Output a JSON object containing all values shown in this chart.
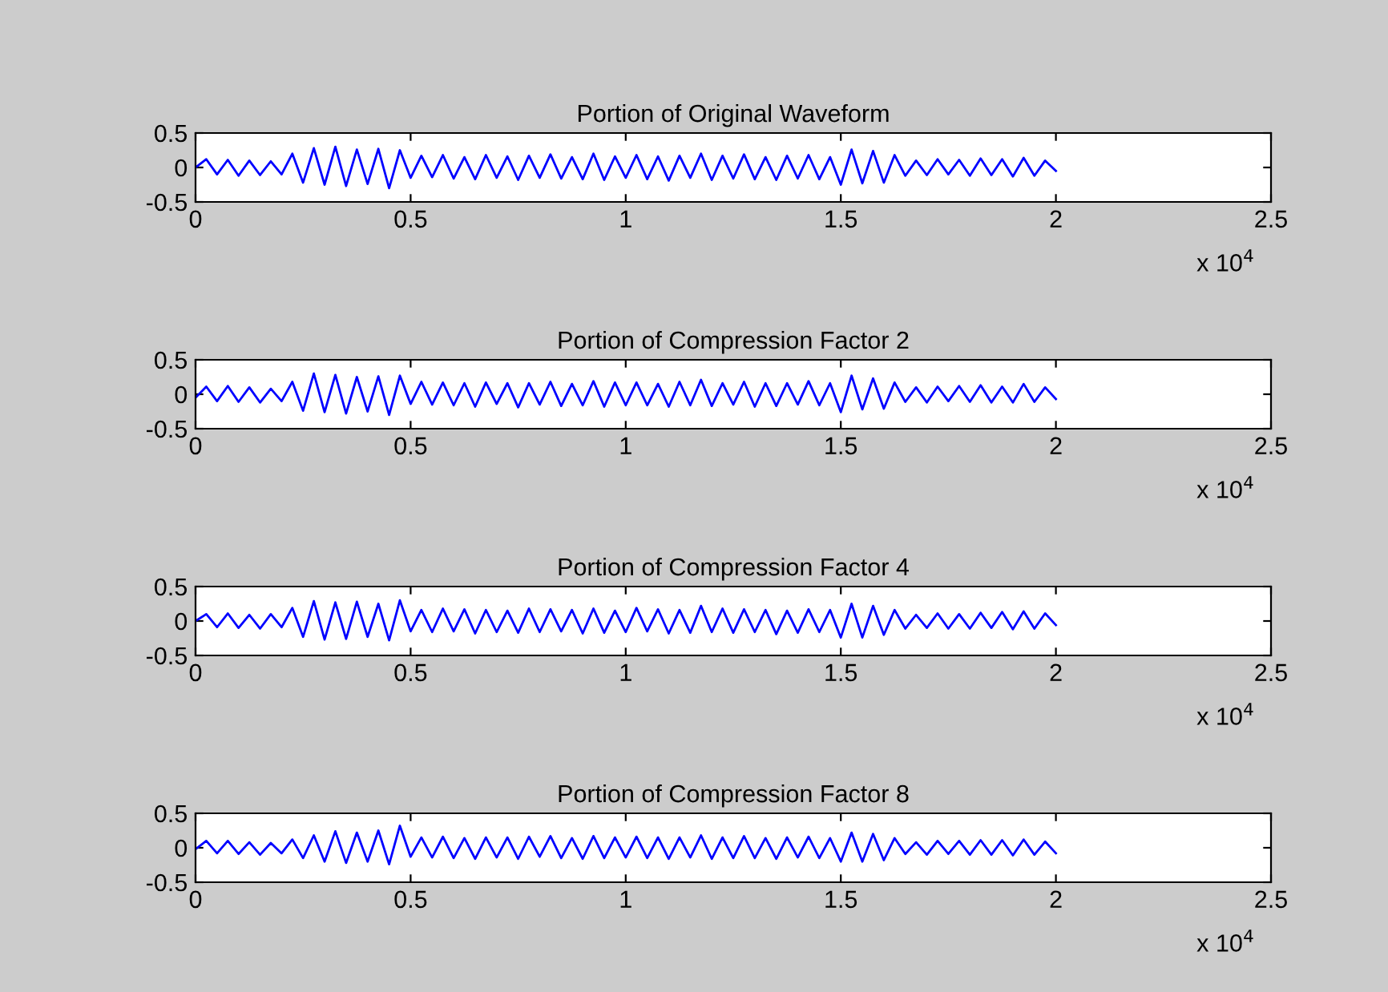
{
  "chart_data": [
    {
      "type": "line",
      "title": "Portion of Original Waveform",
      "annotations": [
        "x 10$^{4}$"
      ],
      "xlim": [
        0,
        2.5
      ],
      "xticks": [
        0,
        0.5,
        1,
        1.5,
        2,
        2.5
      ],
      "ylim": [
        -0.5,
        0.5
      ],
      "yticks": [
        -0.5,
        0,
        0.5
      ],
      "series": [
        {
          "color": "#0000ff",
          "x": [
            0,
            0.025,
            0.05,
            0.075,
            0.1,
            0.125,
            0.15,
            0.175,
            0.2,
            0.225,
            0.25,
            0.275,
            0.3,
            0.325,
            0.35,
            0.375,
            0.4,
            0.425,
            0.45,
            0.475,
            0.5,
            0.525,
            0.55,
            0.575,
            0.6,
            0.625,
            0.65,
            0.675,
            0.7,
            0.725,
            0.75,
            0.775,
            0.8,
            0.825,
            0.85,
            0.875,
            0.9,
            0.925,
            0.95,
            0.975,
            1.0,
            1.025,
            1.05,
            1.075,
            1.1,
            1.125,
            1.15,
            1.175,
            1.2,
            1.225,
            1.25,
            1.275,
            1.3,
            1.325,
            1.35,
            1.375,
            1.4,
            1.425,
            1.45,
            1.475,
            1.5,
            1.525,
            1.55,
            1.575,
            1.6,
            1.625,
            1.65,
            1.675,
            1.7,
            1.725,
            1.75,
            1.775,
            1.8,
            1.825,
            1.85,
            1.875,
            1.9,
            1.925,
            1.95,
            1.975,
            2.0
          ],
          "values": [
            0.0,
            0.12,
            -0.1,
            0.11,
            -0.12,
            0.1,
            -0.11,
            0.09,
            -0.1,
            0.2,
            -0.22,
            0.28,
            -0.25,
            0.3,
            -0.27,
            0.26,
            -0.24,
            0.27,
            -0.3,
            0.25,
            -0.15,
            0.17,
            -0.14,
            0.18,
            -0.16,
            0.15,
            -0.17,
            0.18,
            -0.15,
            0.16,
            -0.18,
            0.17,
            -0.15,
            0.19,
            -0.16,
            0.15,
            -0.17,
            0.2,
            -0.18,
            0.16,
            -0.15,
            0.18,
            -0.17,
            0.16,
            -0.19,
            0.17,
            -0.15,
            0.2,
            -0.18,
            0.17,
            -0.16,
            0.19,
            -0.17,
            0.15,
            -0.18,
            0.17,
            -0.16,
            0.18,
            -0.17,
            0.15,
            -0.25,
            0.26,
            -0.23,
            0.24,
            -0.22,
            0.18,
            -0.12,
            0.1,
            -0.11,
            0.12,
            -0.1,
            0.11,
            -0.12,
            0.13,
            -0.11,
            0.12,
            -0.13,
            0.14,
            -0.12,
            0.1,
            -0.05
          ]
        }
      ]
    },
    {
      "type": "line",
      "title": "Portion of Compression Factor 2",
      "annotations": [
        "x 10$^{4}$"
      ],
      "xlim": [
        0,
        2.5
      ],
      "xticks": [
        0,
        0.5,
        1,
        1.5,
        2,
        2.5
      ],
      "ylim": [
        -0.5,
        0.5
      ],
      "yticks": [
        -0.5,
        0,
        0.5
      ],
      "series": [
        {
          "color": "#0000ff",
          "x": [
            0,
            0.025,
            0.05,
            0.075,
            0.1,
            0.125,
            0.15,
            0.175,
            0.2,
            0.225,
            0.25,
            0.275,
            0.3,
            0.325,
            0.35,
            0.375,
            0.4,
            0.425,
            0.45,
            0.475,
            0.5,
            0.525,
            0.55,
            0.575,
            0.6,
            0.625,
            0.65,
            0.675,
            0.7,
            0.725,
            0.75,
            0.775,
            0.8,
            0.825,
            0.85,
            0.875,
            0.9,
            0.925,
            0.95,
            0.975,
            1.0,
            1.025,
            1.05,
            1.075,
            1.1,
            1.125,
            1.15,
            1.175,
            1.2,
            1.225,
            1.25,
            1.275,
            1.3,
            1.325,
            1.35,
            1.375,
            1.4,
            1.425,
            1.45,
            1.475,
            1.5,
            1.525,
            1.55,
            1.575,
            1.6,
            1.625,
            1.65,
            1.675,
            1.7,
            1.725,
            1.75,
            1.775,
            1.8,
            1.825,
            1.85,
            1.875,
            1.9,
            1.925,
            1.95,
            1.975,
            2.0
          ],
          "values": [
            -0.05,
            0.11,
            -0.1,
            0.12,
            -0.11,
            0.1,
            -0.12,
            0.08,
            -0.1,
            0.18,
            -0.24,
            0.3,
            -0.26,
            0.28,
            -0.28,
            0.25,
            -0.25,
            0.26,
            -0.3,
            0.27,
            -0.14,
            0.18,
            -0.15,
            0.17,
            -0.16,
            0.16,
            -0.18,
            0.17,
            -0.14,
            0.16,
            -0.19,
            0.16,
            -0.15,
            0.18,
            -0.17,
            0.15,
            -0.16,
            0.19,
            -0.18,
            0.17,
            -0.16,
            0.17,
            -0.16,
            0.15,
            -0.18,
            0.18,
            -0.16,
            0.21,
            -0.17,
            0.16,
            -0.15,
            0.18,
            -0.18,
            0.16,
            -0.17,
            0.16,
            -0.15,
            0.19,
            -0.16,
            0.16,
            -0.26,
            0.27,
            -0.22,
            0.23,
            -0.21,
            0.17,
            -0.11,
            0.1,
            -0.12,
            0.11,
            -0.1,
            0.12,
            -0.11,
            0.13,
            -0.12,
            0.11,
            -0.12,
            0.15,
            -0.11,
            0.1,
            -0.07
          ]
        }
      ]
    },
    {
      "type": "line",
      "title": "Portion of Compression Factor 4",
      "annotations": [
        "x 10$^{4}$"
      ],
      "xlim": [
        0,
        2.5
      ],
      "xticks": [
        0,
        0.5,
        1,
        1.5,
        2,
        2.5
      ],
      "ylim": [
        -0.5,
        0.5
      ],
      "yticks": [
        -0.5,
        0,
        0.5
      ],
      "series": [
        {
          "color": "#0000ff",
          "x": [
            0,
            0.025,
            0.05,
            0.075,
            0.1,
            0.125,
            0.15,
            0.175,
            0.2,
            0.225,
            0.25,
            0.275,
            0.3,
            0.325,
            0.35,
            0.375,
            0.4,
            0.425,
            0.45,
            0.475,
            0.5,
            0.525,
            0.55,
            0.575,
            0.6,
            0.625,
            0.65,
            0.675,
            0.7,
            0.725,
            0.75,
            0.775,
            0.8,
            0.825,
            0.85,
            0.875,
            0.9,
            0.925,
            0.95,
            0.975,
            1.0,
            1.025,
            1.05,
            1.075,
            1.1,
            1.125,
            1.15,
            1.175,
            1.2,
            1.225,
            1.25,
            1.275,
            1.3,
            1.325,
            1.35,
            1.375,
            1.4,
            1.425,
            1.45,
            1.475,
            1.5,
            1.525,
            1.55,
            1.575,
            1.6,
            1.625,
            1.65,
            1.675,
            1.7,
            1.725,
            1.75,
            1.775,
            1.8,
            1.825,
            1.85,
            1.875,
            1.9,
            1.925,
            1.95,
            1.975,
            2.0
          ],
          "values": [
            0.0,
            0.1,
            -0.09,
            0.11,
            -0.1,
            0.09,
            -0.11,
            0.1,
            -0.09,
            0.19,
            -0.23,
            0.29,
            -0.27,
            0.27,
            -0.26,
            0.28,
            -0.23,
            0.25,
            -0.28,
            0.3,
            -0.15,
            0.16,
            -0.16,
            0.18,
            -0.15,
            0.17,
            -0.18,
            0.16,
            -0.16,
            0.15,
            -0.17,
            0.18,
            -0.16,
            0.17,
            -0.15,
            0.16,
            -0.18,
            0.18,
            -0.17,
            0.15,
            -0.16,
            0.19,
            -0.15,
            0.17,
            -0.18,
            0.16,
            -0.17,
            0.22,
            -0.16,
            0.18,
            -0.17,
            0.17,
            -0.16,
            0.16,
            -0.19,
            0.15,
            -0.17,
            0.17,
            -0.16,
            0.16,
            -0.24,
            0.25,
            -0.24,
            0.22,
            -0.2,
            0.16,
            -0.11,
            0.09,
            -0.1,
            0.11,
            -0.11,
            0.1,
            -0.11,
            0.12,
            -0.1,
            0.13,
            -0.12,
            0.14,
            -0.11,
            0.11,
            -0.06
          ]
        }
      ]
    },
    {
      "type": "line",
      "title": "Portion of Compression Factor 8",
      "annotations": [
        "x 10$^{4}$"
      ],
      "xlim": [
        0,
        2.5
      ],
      "xticks": [
        0,
        0.5,
        1,
        1.5,
        2,
        2.5
      ],
      "ylim": [
        -0.5,
        0.5
      ],
      "yticks": [
        -0.5,
        0,
        0.5
      ],
      "series": [
        {
          "color": "#0000ff",
          "x": [
            0,
            0.025,
            0.05,
            0.075,
            0.1,
            0.125,
            0.15,
            0.175,
            0.2,
            0.225,
            0.25,
            0.275,
            0.3,
            0.325,
            0.35,
            0.375,
            0.4,
            0.425,
            0.45,
            0.475,
            0.5,
            0.525,
            0.55,
            0.575,
            0.6,
            0.625,
            0.65,
            0.675,
            0.7,
            0.725,
            0.75,
            0.775,
            0.8,
            0.825,
            0.85,
            0.875,
            0.9,
            0.925,
            0.95,
            0.975,
            1.0,
            1.025,
            1.05,
            1.075,
            1.1,
            1.125,
            1.15,
            1.175,
            1.2,
            1.225,
            1.25,
            1.275,
            1.3,
            1.325,
            1.35,
            1.375,
            1.4,
            1.425,
            1.45,
            1.475,
            1.5,
            1.525,
            1.55,
            1.575,
            1.6,
            1.625,
            1.65,
            1.675,
            1.7,
            1.725,
            1.75,
            1.775,
            1.8,
            1.825,
            1.85,
            1.875,
            1.9,
            1.925,
            1.95,
            1.975,
            2.0
          ],
          "values": [
            -0.02,
            0.1,
            -0.08,
            0.1,
            -0.09,
            0.08,
            -0.1,
            0.07,
            -0.08,
            0.12,
            -0.15,
            0.18,
            -0.2,
            0.24,
            -0.22,
            0.22,
            -0.2,
            0.25,
            -0.24,
            0.32,
            -0.13,
            0.15,
            -0.14,
            0.16,
            -0.15,
            0.14,
            -0.16,
            0.15,
            -0.14,
            0.15,
            -0.16,
            0.16,
            -0.13,
            0.17,
            -0.15,
            0.14,
            -0.16,
            0.17,
            -0.15,
            0.15,
            -0.14,
            0.16,
            -0.15,
            0.15,
            -0.16,
            0.15,
            -0.14,
            0.18,
            -0.16,
            0.15,
            -0.15,
            0.17,
            -0.15,
            0.14,
            -0.16,
            0.15,
            -0.14,
            0.16,
            -0.15,
            0.14,
            -0.2,
            0.22,
            -0.2,
            0.2,
            -0.18,
            0.14,
            -0.09,
            0.08,
            -0.1,
            0.1,
            -0.09,
            0.1,
            -0.1,
            0.11,
            -0.1,
            0.11,
            -0.11,
            0.12,
            -0.1,
            0.09,
            -0.08
          ]
        }
      ]
    }
  ]
}
